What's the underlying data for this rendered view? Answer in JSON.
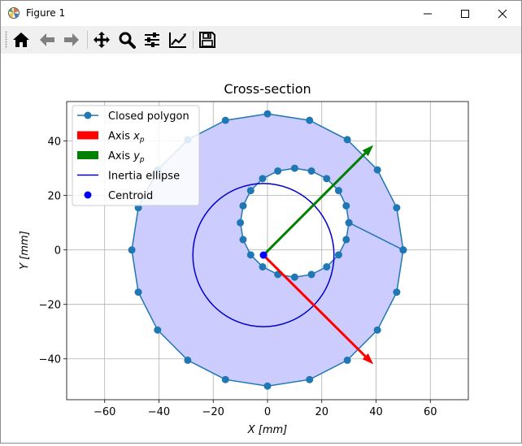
{
  "window": {
    "title": "Figure 1",
    "minimize_icon": "minimize-icon",
    "maximize_icon": "maximize-icon",
    "close_icon": "close-icon"
  },
  "toolbar": {
    "buttons": [
      {
        "name": "home",
        "icon": "home-icon"
      },
      {
        "name": "back",
        "icon": "arrow-left-icon"
      },
      {
        "name": "forward",
        "icon": "arrow-right-icon"
      },
      {
        "name": "pan",
        "icon": "move-icon"
      },
      {
        "name": "zoom",
        "icon": "magnifier-icon"
      },
      {
        "name": "subplots",
        "icon": "sliders-icon"
      },
      {
        "name": "customize",
        "icon": "line-chart-icon"
      },
      {
        "name": "save",
        "icon": "floppy-disk-icon"
      }
    ]
  },
  "colors": {
    "polygon_line": "#1f77b4",
    "polygon_fill": "#ccccff",
    "axis_xp": "#ff0000",
    "axis_yp": "#008000",
    "ellipse": "#0000cd",
    "centroid": "#0000ff"
  },
  "chart_data": {
    "type": "line",
    "title": "Cross-section",
    "xlabel": "X [mm]",
    "ylabel": "Y [mm]",
    "xlim": [
      -74,
      74
    ],
    "ylim": [
      -55,
      54.5
    ],
    "xticks": [
      -60,
      -40,
      -20,
      0,
      20,
      40,
      60
    ],
    "yticks": [
      -40,
      -20,
      0,
      20,
      40
    ],
    "xtick_labels": [
      "−60",
      "−40",
      "−20",
      "0",
      "20",
      "40",
      "60"
    ],
    "ytick_labels": [
      "−40",
      "−20",
      "0",
      "20",
      "40"
    ],
    "grid": true,
    "legend_position": "top-left",
    "legend": [
      {
        "key": "polygon",
        "label": "Closed polygon",
        "sub": ""
      },
      {
        "key": "xp",
        "label": "Axis x",
        "sub": "p"
      },
      {
        "key": "yp",
        "label": "Axis y",
        "sub": "p"
      },
      {
        "key": "ellipse",
        "label": "Inertia ellipse",
        "sub": ""
      },
      {
        "key": "centroid",
        "label": "Centroid",
        "sub": ""
      }
    ],
    "outer_polygon": [
      [
        50,
        0
      ],
      [
        47.6,
        -15.5
      ],
      [
        40.5,
        -29.4
      ],
      [
        29.4,
        -40.5
      ],
      [
        15.5,
        -47.6
      ],
      [
        0,
        -50
      ],
      [
        -15.5,
        -47.6
      ],
      [
        -29.4,
        -40.5
      ],
      [
        -40.5,
        -29.4
      ],
      [
        -47.6,
        -15.5
      ],
      [
        -50,
        0
      ],
      [
        -47.6,
        15.5
      ],
      [
        -40.5,
        29.4
      ],
      [
        -29.4,
        40.5
      ],
      [
        -15.5,
        47.6
      ],
      [
        0,
        50
      ],
      [
        15.5,
        47.6
      ],
      [
        29.4,
        40.5
      ],
      [
        40.5,
        29.4
      ],
      [
        47.6,
        15.5
      ],
      [
        50,
        0
      ]
    ],
    "inner_polygon": [
      [
        30,
        10
      ],
      [
        29.0,
        3.8
      ],
      [
        26.2,
        -1.8
      ],
      [
        21.8,
        -6.2
      ],
      [
        16.2,
        -9.0
      ],
      [
        10,
        -10
      ],
      [
        3.8,
        -9.0
      ],
      [
        -1.8,
        -6.2
      ],
      [
        -6.2,
        -1.8
      ],
      [
        -9.0,
        3.8
      ],
      [
        -10,
        10
      ],
      [
        -9.0,
        16.2
      ],
      [
        -6.2,
        21.8
      ],
      [
        -1.8,
        26.2
      ],
      [
        3.8,
        29.0
      ],
      [
        10,
        30
      ],
      [
        16.2,
        29.0
      ],
      [
        21.8,
        26.2
      ],
      [
        26.2,
        21.8
      ],
      [
        29.0,
        16.2
      ],
      [
        30,
        10
      ]
    ],
    "ellipse": {
      "cx": -1.5,
      "cy": -1.9,
      "rx": 26,
      "ry": 26.3
    },
    "centroid": [
      -1.5,
      -1.9
    ],
    "axis_xp": {
      "start": [
        -1.5,
        -1.9
      ],
      "end": [
        39,
        -42
      ]
    },
    "axis_yp": {
      "start": [
        -1.5,
        -1.9
      ],
      "end": [
        39,
        38.5
      ]
    }
  }
}
